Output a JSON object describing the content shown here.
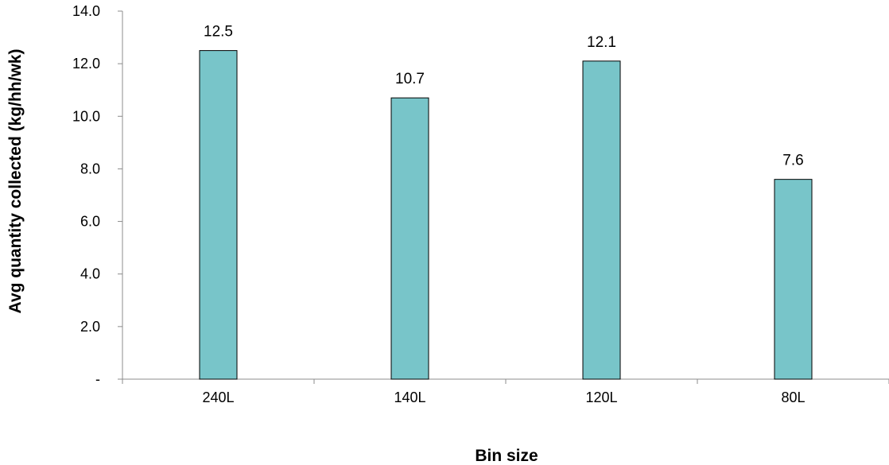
{
  "chart_data": {
    "type": "bar",
    "title": "",
    "xlabel": "Bin size",
    "ylabel": "Avg quantity collected (kg/hh/wk)",
    "categories": [
      "240L",
      "140L",
      "120L",
      "80L"
    ],
    "values": [
      12.5,
      10.7,
      12.1,
      7.6
    ],
    "data_labels": [
      "12.5",
      "10.7",
      "12.1",
      "7.6"
    ],
    "ylim": [
      0,
      14
    ],
    "y_ticks": [
      {
        "value": 0,
        "label": "-"
      },
      {
        "value": 2,
        "label": "2.0"
      },
      {
        "value": 4,
        "label": "4.0"
      },
      {
        "value": 6,
        "label": "6.0"
      },
      {
        "value": 8,
        "label": "8.0"
      },
      {
        "value": 10,
        "label": "10.0"
      },
      {
        "value": 12,
        "label": "12.0"
      },
      {
        "value": 14,
        "label": "14.0"
      }
    ],
    "grid": false,
    "legend": "none",
    "colors": {
      "bar_fill": "#78c5c9",
      "bar_stroke": "#000000",
      "axis": "#8c8c8c"
    }
  }
}
